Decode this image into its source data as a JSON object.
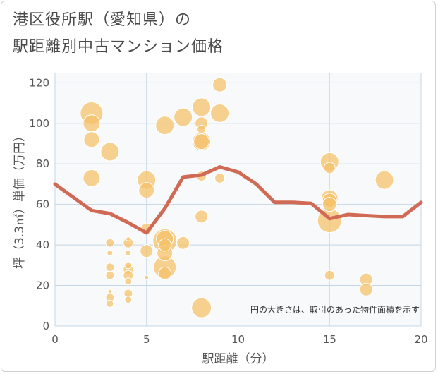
{
  "header": {
    "title_line1": "港区役所駅（愛知県）の",
    "title_line2": "駅距離別中古マンション価格"
  },
  "colors": {
    "bubble_fill": "#f5c16b",
    "bubble_stroke": "#ffffff",
    "line": "#d06a55",
    "grid": "#c6d6e4",
    "plot_background": "#f7f9fb"
  },
  "chart_data": {
    "type": "scatter",
    "title": "港区役所駅（愛知県）の駅距離別中古マンション価格",
    "xlabel": "駅距離（分）",
    "ylabel": "坪（3.3㎡）単価（万円）",
    "xlim": [
      0,
      20
    ],
    "ylim": [
      0,
      125
    ],
    "x_ticks": [
      0,
      5,
      10,
      15,
      20
    ],
    "y_ticks": [
      0,
      20,
      40,
      60,
      80,
      100,
      120
    ],
    "grid": true,
    "annotation": "円の大きさは、取引のあった物件面積を示す",
    "bubbles": [
      {
        "x": 2,
        "y": 105,
        "s": 16
      },
      {
        "x": 2,
        "y": 100,
        "s": 12
      },
      {
        "x": 2,
        "y": 92,
        "s": 11
      },
      {
        "x": 2,
        "y": 73,
        "s": 12
      },
      {
        "x": 3,
        "y": 86,
        "s": 13
      },
      {
        "x": 3,
        "y": 41,
        "s": 6
      },
      {
        "x": 3,
        "y": 36,
        "s": 4
      },
      {
        "x": 3,
        "y": 29,
        "s": 6
      },
      {
        "x": 3,
        "y": 25,
        "s": 6
      },
      {
        "x": 3,
        "y": 17,
        "s": 3
      },
      {
        "x": 3,
        "y": 14,
        "s": 6
      },
      {
        "x": 3,
        "y": 11,
        "s": 5
      },
      {
        "x": 4,
        "y": 43,
        "s": 3
      },
      {
        "x": 4,
        "y": 41,
        "s": 7
      },
      {
        "x": 4,
        "y": 36,
        "s": 4
      },
      {
        "x": 4,
        "y": 30,
        "s": 5
      },
      {
        "x": 4,
        "y": 28,
        "s": 7
      },
      {
        "x": 4,
        "y": 25,
        "s": 7
      },
      {
        "x": 4,
        "y": 22,
        "s": 5
      },
      {
        "x": 4,
        "y": 16,
        "s": 6
      },
      {
        "x": 4,
        "y": 13,
        "s": 5
      },
      {
        "x": 5,
        "y": 72,
        "s": 13
      },
      {
        "x": 5,
        "y": 67,
        "s": 11
      },
      {
        "x": 5,
        "y": 48,
        "s": 8
      },
      {
        "x": 5,
        "y": 37,
        "s": 9
      },
      {
        "x": 5,
        "y": 24,
        "s": 3
      },
      {
        "x": 6,
        "y": 99,
        "s": 13
      },
      {
        "x": 6,
        "y": 43,
        "s": 12
      },
      {
        "x": 6,
        "y": 42,
        "s": 17
      },
      {
        "x": 6,
        "y": 40,
        "s": 9
      },
      {
        "x": 6,
        "y": 36,
        "s": 11
      },
      {
        "x": 6,
        "y": 29,
        "s": 16
      },
      {
        "x": 6,
        "y": 26,
        "s": 9
      },
      {
        "x": 7,
        "y": 103,
        "s": 13
      },
      {
        "x": 7,
        "y": 41,
        "s": 9
      },
      {
        "x": 8,
        "y": 108,
        "s": 13
      },
      {
        "x": 8,
        "y": 100,
        "s": 9
      },
      {
        "x": 8,
        "y": 97,
        "s": 6
      },
      {
        "x": 8,
        "y": 91,
        "s": 13
      },
      {
        "x": 8,
        "y": 91,
        "s": 11
      },
      {
        "x": 8,
        "y": 74,
        "s": 7
      },
      {
        "x": 8,
        "y": 54,
        "s": 9
      },
      {
        "x": 8,
        "y": 9,
        "s": 14
      },
      {
        "x": 9,
        "y": 119,
        "s": 10
      },
      {
        "x": 9,
        "y": 105,
        "s": 13
      },
      {
        "x": 9,
        "y": 73,
        "s": 7
      },
      {
        "x": 15,
        "y": 81,
        "s": 13
      },
      {
        "x": 15,
        "y": 78,
        "s": 8
      },
      {
        "x": 15,
        "y": 63,
        "s": 12
      },
      {
        "x": 15,
        "y": 62,
        "s": 10
      },
      {
        "x": 15,
        "y": 60,
        "s": 10
      },
      {
        "x": 15,
        "y": 52,
        "s": 17
      },
      {
        "x": 15,
        "y": 25,
        "s": 7
      },
      {
        "x": 17,
        "y": 23,
        "s": 9
      },
      {
        "x": 17,
        "y": 18,
        "s": 9
      },
      {
        "x": 18,
        "y": 72,
        "s": 13
      }
    ],
    "series": [
      {
        "type": "line",
        "x": [
          0,
          1,
          2,
          3,
          4,
          5,
          6,
          7,
          8,
          9,
          10,
          11,
          12,
          13,
          14,
          15,
          16,
          17,
          18,
          19,
          20
        ],
        "values": [
          70,
          63.5,
          57,
          55.5,
          51,
          46,
          58,
          73.5,
          74.5,
          78.5,
          76,
          70,
          61,
          61,
          60.5,
          53,
          55,
          54.5,
          54,
          54,
          61
        ]
      }
    ]
  }
}
